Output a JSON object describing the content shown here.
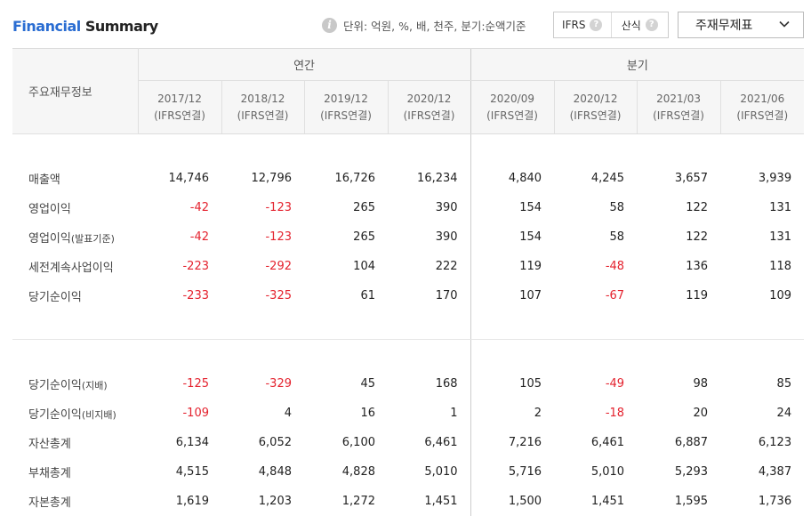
{
  "header": {
    "title_accent": "Financial",
    "title_rest": " Summary",
    "unit_text": "단위: 억원, %, 배, 천주, 분기:순액기준",
    "info_icon": "info-icon",
    "toggle": {
      "ifrs": "IFRS",
      "calc": "산식"
    },
    "select_value": "주재무제표"
  },
  "table": {
    "row_label_header": "주요재무정보",
    "group_annual": "연간",
    "group_quarter": "분기",
    "columns": [
      {
        "period": "2017/12",
        "basis": "(IFRS연결)"
      },
      {
        "period": "2018/12",
        "basis": "(IFRS연결)"
      },
      {
        "period": "2019/12",
        "basis": "(IFRS연결)"
      },
      {
        "period": "2020/12",
        "basis": "(IFRS연결)"
      },
      {
        "period": "2020/09",
        "basis": "(IFRS연결)"
      },
      {
        "period": "2020/12",
        "basis": "(IFRS연결)"
      },
      {
        "period": "2021/03",
        "basis": "(IFRS연결)"
      },
      {
        "period": "2021/06",
        "basis": "(IFRS연결)"
      }
    ],
    "rows_group1": [
      {
        "label": "매출액",
        "label_small": "",
        "values": [
          "14,746",
          "12,796",
          "16,726",
          "16,234",
          "4,840",
          "4,245",
          "3,657",
          "3,939"
        ]
      },
      {
        "label": "영업이익",
        "label_small": "",
        "values": [
          "-42",
          "-123",
          "265",
          "390",
          "154",
          "58",
          "122",
          "131"
        ]
      },
      {
        "label": "영업이익",
        "label_small": "(발표기준)",
        "values": [
          "-42",
          "-123",
          "265",
          "390",
          "154",
          "58",
          "122",
          "131"
        ]
      },
      {
        "label": "세전계속사업이익",
        "label_small": "",
        "values": [
          "-223",
          "-292",
          "104",
          "222",
          "119",
          "-48",
          "136",
          "118"
        ]
      },
      {
        "label": "당기순이익",
        "label_small": "",
        "values": [
          "-233",
          "-325",
          "61",
          "170",
          "107",
          "-67",
          "119",
          "109"
        ]
      }
    ],
    "rows_group2": [
      {
        "label": "당기순이익",
        "label_small": "(지배)",
        "values": [
          "-125",
          "-329",
          "45",
          "168",
          "105",
          "-49",
          "98",
          "85"
        ]
      },
      {
        "label": "당기순이익",
        "label_small": "(비지배)",
        "values": [
          "-109",
          "4",
          "16",
          "1",
          "2",
          "-18",
          "20",
          "24"
        ]
      },
      {
        "label": "자산총계",
        "label_small": "",
        "values": [
          "6,134",
          "6,052",
          "6,100",
          "6,461",
          "7,216",
          "6,461",
          "6,887",
          "6,123"
        ]
      },
      {
        "label": "부채총계",
        "label_small": "",
        "values": [
          "4,515",
          "4,848",
          "4,828",
          "5,010",
          "5,716",
          "5,010",
          "5,293",
          "4,387"
        ]
      },
      {
        "label": "자본총계",
        "label_small": "",
        "values": [
          "1,619",
          "1,203",
          "1,272",
          "1,451",
          "1,500",
          "1,451",
          "1,595",
          "1,736"
        ]
      }
    ]
  },
  "colors": {
    "accent": "#2a6dd2",
    "negative": "#e4222e"
  }
}
